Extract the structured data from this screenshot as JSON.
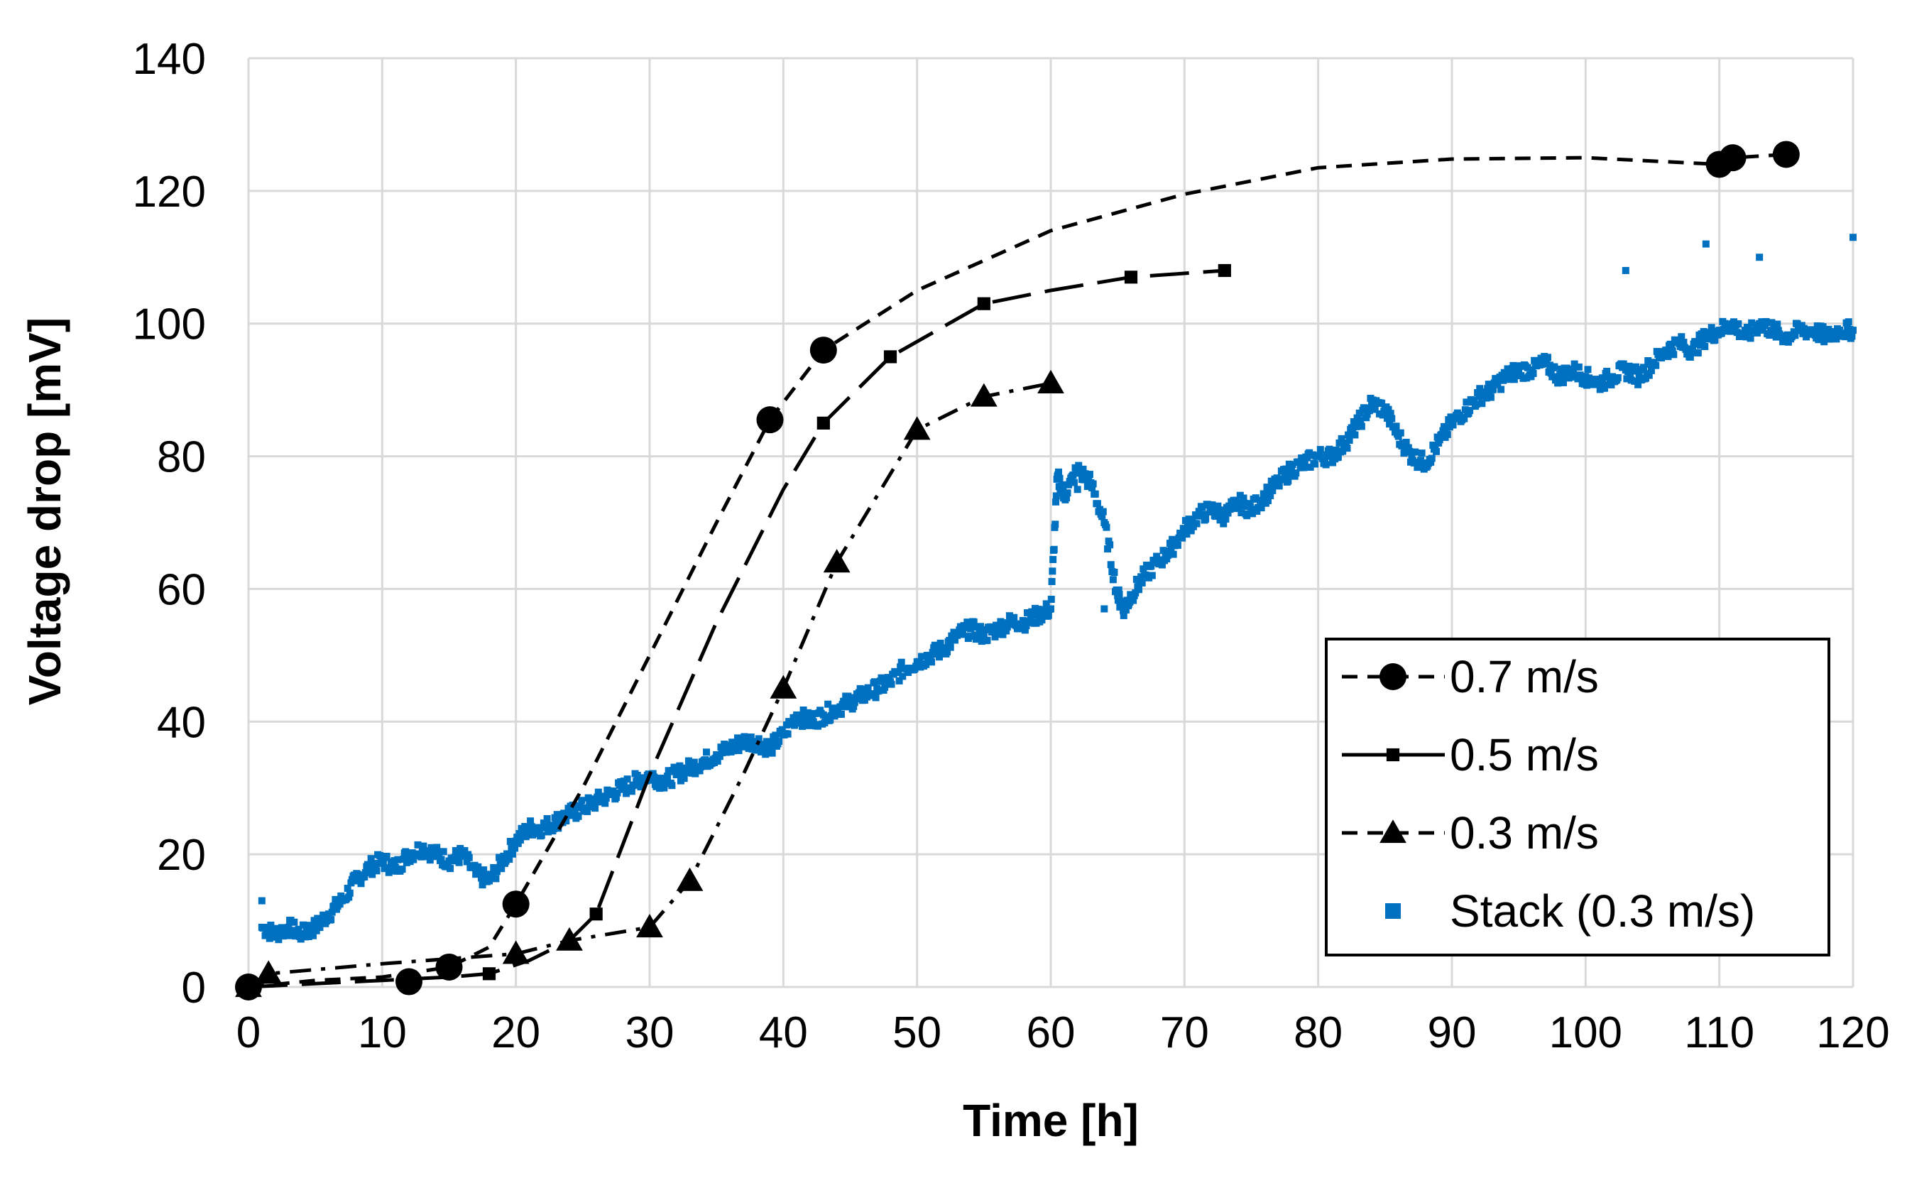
{
  "chart_data": {
    "type": "line",
    "title": "",
    "xlabel": "Time [h]",
    "ylabel": "Voltage drop [mV]",
    "xlim": [
      0,
      120
    ],
    "ylim": [
      0,
      140
    ],
    "x_ticks": [
      "0",
      "10",
      "20",
      "30",
      "40",
      "50",
      "60",
      "70",
      "80",
      "90",
      "100",
      "110",
      "120"
    ],
    "y_ticks": [
      "0",
      "20",
      "40",
      "60",
      "80",
      "100",
      "120",
      "140"
    ],
    "grid": true,
    "legend_position": "bottom-right",
    "series": [
      {
        "name": "0.7 m/s",
        "color": "#000000",
        "marker": "circle",
        "line_style": "dashed",
        "points": [
          [
            0,
            0
          ],
          [
            12,
            0.8
          ],
          [
            15,
            3
          ],
          [
            20,
            12.5
          ],
          [
            39,
            85.5
          ],
          [
            43,
            96
          ],
          [
            110,
            124
          ],
          [
            111,
            125
          ],
          [
            115,
            125.5
          ]
        ],
        "curve": [
          [
            0,
            0
          ],
          [
            5,
            1
          ],
          [
            10,
            1.5
          ],
          [
            15,
            3
          ],
          [
            18,
            6
          ],
          [
            20,
            12.5
          ],
          [
            25,
            30
          ],
          [
            30,
            50
          ],
          [
            35,
            70
          ],
          [
            39,
            85.5
          ],
          [
            43,
            96
          ],
          [
            50,
            105
          ],
          [
            60,
            114
          ],
          [
            70,
            119.5
          ],
          [
            80,
            123.5
          ],
          [
            90,
            124.8
          ],
          [
            100,
            125
          ],
          [
            110,
            124
          ],
          [
            111,
            125
          ],
          [
            115,
            125.5
          ]
        ]
      },
      {
        "name": "0.5 m/s",
        "color": "#000000",
        "marker": "square",
        "line_style": "long-dash",
        "points": [
          [
            0,
            0
          ],
          [
            18,
            2
          ],
          [
            26,
            11
          ],
          [
            43,
            85
          ],
          [
            48,
            95
          ],
          [
            55,
            103
          ],
          [
            66,
            107
          ],
          [
            73,
            108
          ]
        ],
        "curve": [
          [
            0,
            0
          ],
          [
            5,
            0.5
          ],
          [
            10,
            1
          ],
          [
            15,
            1.5
          ],
          [
            18,
            2
          ],
          [
            21,
            4
          ],
          [
            24,
            7
          ],
          [
            26,
            11
          ],
          [
            30,
            32
          ],
          [
            35,
            55
          ],
          [
            40,
            75
          ],
          [
            43,
            85
          ],
          [
            48,
            95
          ],
          [
            55,
            103
          ],
          [
            60,
            105
          ],
          [
            66,
            107
          ],
          [
            73,
            108
          ]
        ]
      },
      {
        "name": "0.3 m/s",
        "color": "#000000",
        "marker": "triangle",
        "line_style": "dash-dot",
        "points": [
          [
            0,
            0
          ],
          [
            1.5,
            2
          ],
          [
            20,
            5
          ],
          [
            24,
            7
          ],
          [
            30,
            9
          ],
          [
            33,
            16
          ],
          [
            40,
            45
          ],
          [
            44,
            64
          ],
          [
            50,
            84
          ],
          [
            55,
            89
          ],
          [
            60,
            91
          ]
        ],
        "curve": [
          [
            0,
            0
          ],
          [
            1.5,
            2
          ],
          [
            10,
            3.5
          ],
          [
            20,
            5
          ],
          [
            24,
            7
          ],
          [
            30,
            9
          ],
          [
            33,
            16
          ],
          [
            37,
            32
          ],
          [
            40,
            45
          ],
          [
            44,
            64
          ],
          [
            50,
            84
          ],
          [
            55,
            89
          ],
          [
            60,
            91
          ]
        ]
      },
      {
        "name": "Stack (0.3 m/s)",
        "color": "#0070C0",
        "marker": "square-small",
        "line_style": "none",
        "points": [
          [
            1,
            13
          ],
          [
            1,
            9
          ],
          [
            2,
            8
          ],
          [
            3,
            9
          ],
          [
            4,
            8
          ],
          [
            5,
            9
          ],
          [
            6,
            11
          ],
          [
            7,
            13
          ],
          [
            8,
            16
          ],
          [
            9,
            18
          ],
          [
            10,
            19
          ],
          [
            11,
            18
          ],
          [
            12,
            20
          ],
          [
            13,
            21
          ],
          [
            14,
            20
          ],
          [
            15,
            19
          ],
          [
            16,
            20
          ],
          [
            17,
            17
          ],
          [
            18,
            16
          ],
          [
            19,
            19
          ],
          [
            20,
            22
          ],
          [
            21,
            24
          ],
          [
            22,
            24
          ],
          [
            23,
            25
          ],
          [
            24,
            26
          ],
          [
            25,
            27
          ],
          [
            26,
            28
          ],
          [
            27,
            29
          ],
          [
            28,
            30
          ],
          [
            29,
            31
          ],
          [
            30,
            32
          ],
          [
            31,
            31
          ],
          [
            32,
            32
          ],
          [
            33,
            33
          ],
          [
            34,
            34
          ],
          [
            35,
            35
          ],
          [
            36,
            36
          ],
          [
            37,
            37
          ],
          [
            38,
            37
          ],
          [
            39,
            36
          ],
          [
            40,
            38
          ],
          [
            41,
            41
          ],
          [
            42,
            40
          ],
          [
            43,
            41
          ],
          [
            44,
            42
          ],
          [
            45,
            43
          ],
          [
            46,
            44
          ],
          [
            47,
            45
          ],
          [
            48,
            46
          ],
          [
            49,
            48
          ],
          [
            50,
            49
          ],
          [
            51,
            50
          ],
          [
            52,
            51
          ],
          [
            53,
            53
          ],
          [
            54,
            54
          ],
          [
            55,
            53
          ],
          [
            56,
            54
          ],
          [
            57,
            55
          ],
          [
            58,
            55
          ],
          [
            59,
            56
          ],
          [
            60,
            57
          ],
          [
            60.5,
            77
          ],
          [
            61,
            74
          ],
          [
            62,
            78
          ],
          [
            63,
            76
          ],
          [
            64,
            70
          ],
          [
            65,
            59
          ],
          [
            65.5,
            57
          ],
          [
            66,
            59
          ],
          [
            67,
            62
          ],
          [
            68,
            64
          ],
          [
            69,
            66
          ],
          [
            70,
            69
          ],
          [
            71,
            71
          ],
          [
            72,
            72
          ],
          [
            73,
            71
          ],
          [
            74,
            73
          ],
          [
            75,
            72
          ],
          [
            76,
            74
          ],
          [
            77,
            76
          ],
          [
            78,
            78
          ],
          [
            79,
            79
          ],
          [
            80,
            80
          ],
          [
            81,
            80
          ],
          [
            82,
            82
          ],
          [
            83,
            85
          ],
          [
            84,
            88
          ],
          [
            85,
            87
          ],
          [
            86,
            83
          ],
          [
            87,
            80
          ],
          [
            88,
            79
          ],
          [
            89,
            82
          ],
          [
            90,
            85
          ],
          [
            91,
            87
          ],
          [
            92,
            89
          ],
          [
            93,
            90
          ],
          [
            94,
            92
          ],
          [
            95,
            93
          ],
          [
            96,
            93
          ],
          [
            97,
            94
          ],
          [
            98,
            92
          ],
          [
            99,
            93
          ],
          [
            100,
            92
          ],
          [
            101,
            91
          ],
          [
            102,
            92
          ],
          [
            103,
            93
          ],
          [
            104,
            92
          ],
          [
            105,
            94
          ],
          [
            106,
            96
          ],
          [
            107,
            97
          ],
          [
            108,
            96
          ],
          [
            109,
            98
          ],
          [
            110,
            99
          ],
          [
            111,
            100
          ],
          [
            112,
            98
          ],
          [
            113,
            100
          ],
          [
            114,
            99
          ],
          [
            115,
            98
          ],
          [
            116,
            99
          ],
          [
            117,
            99
          ],
          [
            118,
            98
          ],
          [
            119,
            99
          ],
          [
            120,
            99
          ],
          [
            120,
            113
          ],
          [
            113,
            110
          ],
          [
            109,
            112
          ],
          [
            103,
            108
          ],
          [
            62,
            75
          ],
          [
            64,
            57
          ]
        ]
      }
    ]
  }
}
